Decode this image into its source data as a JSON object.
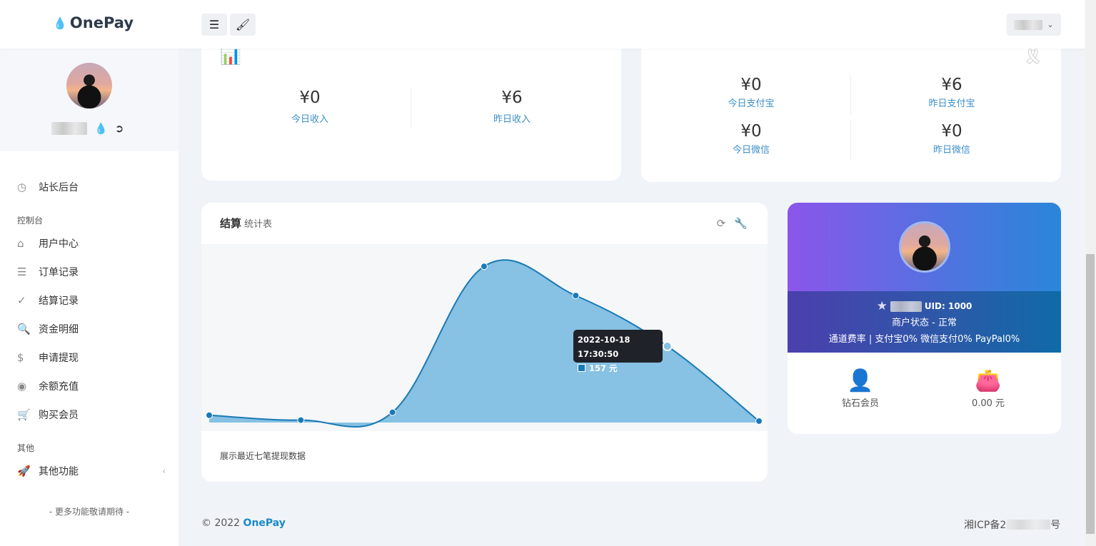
{
  "header": {
    "logo": "OnePay",
    "menu_icon": "hamburger-icon",
    "theme_icon": "brush-icon"
  },
  "sidebar": {
    "dashboard": "站长后台",
    "section1": "控制台",
    "items": [
      {
        "label": "用户中心",
        "icon": "home-icon"
      },
      {
        "label": "订单记录",
        "icon": "list-icon"
      },
      {
        "label": "结算记录",
        "icon": "check-circle-icon"
      },
      {
        "label": "资金明细",
        "icon": "search-dollar-icon"
      },
      {
        "label": "申请提现",
        "icon": "dollar-icon"
      },
      {
        "label": "余额充值",
        "icon": "coin-icon"
      },
      {
        "label": "购买会员",
        "icon": "cart-icon"
      }
    ],
    "section2": "其他",
    "other": "其他功能",
    "more": "- 更多功能敬请期待 -"
  },
  "income": {
    "today_value": "¥0",
    "today_label": "今日收入",
    "yesterday_value": "¥6",
    "yesterday_label": "昨日收入"
  },
  "channels": {
    "alipay_today": "¥0",
    "alipay_today_label": "今日支付宝",
    "alipay_yest": "¥6",
    "alipay_yest_label": "昨日支付宝",
    "wx_today": "¥0",
    "wx_today_label": "今日微信",
    "wx_yest": "¥0",
    "wx_yest_label": "昨日微信"
  },
  "settle": {
    "title": "结算",
    "subtitle": "统计表",
    "footer": "展示最近七笔提现数据",
    "tooltip_date": "2022-10-18 17:30:50",
    "tooltip_value": "157 元"
  },
  "chart_data": {
    "type": "area",
    "values": [
      15,
      5,
      21,
      321,
      261,
      157,
      3
    ],
    "unit": "元",
    "color": "#1a7ab5",
    "fill": "#87c1e3",
    "grid": false,
    "highlighted_index": 5
  },
  "profile": {
    "uid": "UID: 1000",
    "status": "商户状态 - 正常",
    "rates": "通道费率 | 支付宝0%  微信支付0%  PayPal0%",
    "level": "钻石会员",
    "balance": "0.00 元"
  },
  "footer": {
    "copyright": "© 2022",
    "brand": "OnePay",
    "icp_prefix": "湘ICP备2",
    "icp_suffix": "号"
  }
}
